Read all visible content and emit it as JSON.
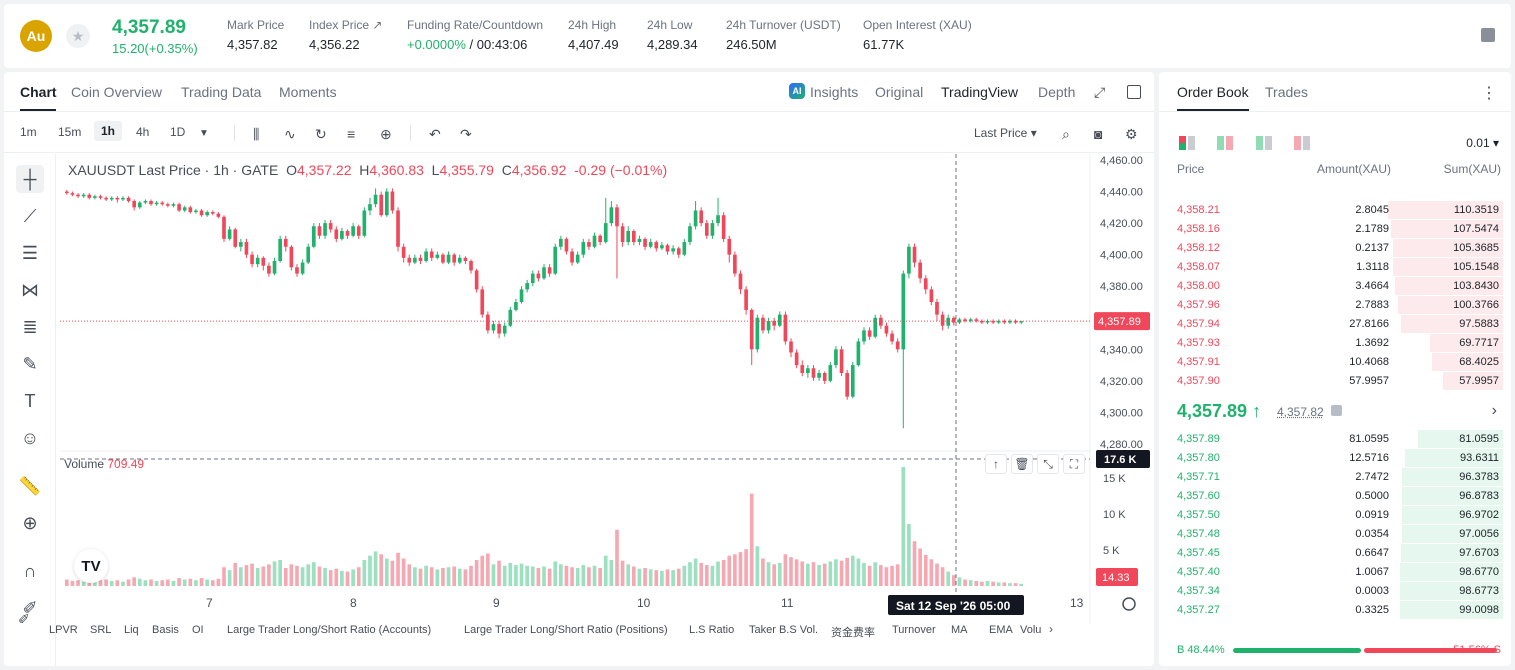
{
  "header": {
    "coin_symbol": "Au",
    "last_price": "4,357.89",
    "change": "15.20(+0.35%)",
    "stats": [
      {
        "label": "Mark Price",
        "value": "4,357.82"
      },
      {
        "label": "Index Price ↗",
        "value": "4,356.22"
      },
      {
        "label": "Funding Rate/Countdown",
        "value_green": "+0.0000%",
        "value": " / 00:43:06"
      },
      {
        "label": "24h High",
        "value": "4,407.49"
      },
      {
        "label": "24h Low",
        "value": "4,289.34"
      },
      {
        "label": "24h Turnover (USDT)",
        "value": "246.50M"
      },
      {
        "label": "Open Interest (XAU)",
        "value": "61.77K"
      }
    ]
  },
  "chart_tabs": [
    "Chart",
    "Coin Overview",
    "Trading Data",
    "Moments"
  ],
  "view_tabs": {
    "insights": "Insights",
    "original": "Original",
    "tradingview": "TradingView",
    "depth": "Depth"
  },
  "timeframes": [
    "1m",
    "15m",
    "1h",
    "4h",
    "1D"
  ],
  "active_timeframe": "1h",
  "price_source": "Last Price",
  "legend": {
    "symbol": "XAUUSDT Last Price · 1h · GATE",
    "o": "4,357.22",
    "h": "4,360.83",
    "l": "4,355.79",
    "c": "4,356.92",
    "chg": "-0.29 (−0.01%)"
  },
  "volume_legend": {
    "label": "Volume",
    "value": "709.49"
  },
  "y_axis_labels": [
    "4,460.00",
    "4,440.00",
    "4,420.00",
    "4,400.00",
    "4,380.00",
    "4,360.00",
    "4,340.00",
    "4,320.00",
    "4,300.00",
    "4,280.00"
  ],
  "current_price_tag": "4,357.89",
  "vol_axis_labels": [
    "15 K",
    "10 K",
    "5 K"
  ],
  "vol_max_tag": "17.6 K",
  "vol_current_tag": "14.33",
  "x_axis_labels": [
    "7",
    "8",
    "9",
    "10",
    "11",
    "13"
  ],
  "crosshair_time": "Sat 12 Sep '26   05:00",
  "bottom_indicators": [
    "LPVR",
    "SRL",
    "Liq",
    "Basis",
    "OI",
    "Large Trader Long/Short Ratio (Accounts)",
    "Large Trader Long/Short Ratio (Positions)",
    "L.S Ratio",
    "Taker B.S Vol.",
    "资金费率",
    "Turnover",
    "MA",
    "EMA",
    "Volu"
  ],
  "orderbook": {
    "tabs": [
      "Order Book",
      "Trades"
    ],
    "tick": "0.01",
    "head": {
      "price": "Price",
      "amount": "Amount(XAU)",
      "sum": "Sum(XAU)"
    },
    "asks": [
      {
        "price": "4,358.21",
        "amount": "2.8045",
        "sum": "110.3519",
        "depth": 1.0
      },
      {
        "price": "4,358.16",
        "amount": "2.1789",
        "sum": "107.5474",
        "depth": 0.97
      },
      {
        "price": "4,358.12",
        "amount": "0.2137",
        "sum": "105.3685",
        "depth": 0.955
      },
      {
        "price": "4,358.07",
        "amount": "1.3118",
        "sum": "105.1548",
        "depth": 0.953
      },
      {
        "price": "4,358.00",
        "amount": "3.4664",
        "sum": "103.8430",
        "depth": 0.94
      },
      {
        "price": "4,357.96",
        "amount": "2.7883",
        "sum": "100.3766",
        "depth": 0.91
      },
      {
        "price": "4,357.94",
        "amount": "27.8166",
        "sum": "97.5883",
        "depth": 0.885
      },
      {
        "price": "4,357.93",
        "amount": "1.3692",
        "sum": "69.7717",
        "depth": 0.632
      },
      {
        "price": "4,357.91",
        "amount": "10.4068",
        "sum": "68.4025",
        "depth": 0.62
      },
      {
        "price": "4,357.90",
        "amount": "57.9957",
        "sum": "57.9957",
        "depth": 0.525
      }
    ],
    "mid_price": "4,357.89 ↑",
    "mid_mark": "4,357.82",
    "bids": [
      {
        "price": "4,357.89",
        "amount": "81.0595",
        "sum": "81.0595",
        "depth": 0.735
      },
      {
        "price": "4,357.80",
        "amount": "12.5716",
        "sum": "93.6311",
        "depth": 0.849
      },
      {
        "price": "4,357.71",
        "amount": "2.7472",
        "sum": "96.3783",
        "depth": 0.874
      },
      {
        "price": "4,357.60",
        "amount": "0.5000",
        "sum": "96.8783",
        "depth": 0.878
      },
      {
        "price": "4,357.50",
        "amount": "0.0919",
        "sum": "96.9702",
        "depth": 0.879
      },
      {
        "price": "4,357.48",
        "amount": "0.0354",
        "sum": "97.0056",
        "depth": 0.88
      },
      {
        "price": "4,357.45",
        "amount": "0.6647",
        "sum": "97.6703",
        "depth": 0.885
      },
      {
        "price": "4,357.40",
        "amount": "1.0067",
        "sum": "98.6770",
        "depth": 0.895
      },
      {
        "price": "4,357.34",
        "amount": "0.0003",
        "sum": "98.6773",
        "depth": 0.895
      },
      {
        "price": "4,357.27",
        "amount": "0.3325",
        "sum": "99.0098",
        "depth": 0.898
      }
    ],
    "buy_ratio": "B 48.44%",
    "sell_ratio": "51.56% S",
    "buy_pct": 48.44
  },
  "colors": {
    "up": "#20b26c",
    "down": "#f0485a"
  },
  "chart_data": {
    "type": "candlestick",
    "title": "XAUUSDT Last Price · 1h · GATE",
    "ylim": [
      4280,
      4460
    ],
    "vol_max": 17600,
    "candles": [
      [
        4440,
        4439,
        4441,
        4438,
        900
      ],
      [
        4439,
        4438,
        4440,
        4437,
        700
      ],
      [
        4438,
        4437,
        4439,
        4436,
        800
      ],
      [
        4437,
        4438,
        4439,
        4436,
        600
      ],
      [
        4438,
        4436,
        4439,
        4435,
        900
      ],
      [
        4436,
        4437,
        4438,
        4435,
        700
      ],
      [
        4437,
        4436,
        4438,
        4435,
        800
      ],
      [
        4436,
        4435,
        4437,
        4434,
        900
      ],
      [
        4435,
        4436,
        4437,
        4434,
        700
      ],
      [
        4436,
        4435,
        4437,
        4433,
        800
      ],
      [
        4435,
        4436,
        4437,
        4434,
        600
      ],
      [
        4436,
        4434,
        4437,
        4433,
        900
      ],
      [
        4434,
        4430,
        4435,
        4428,
        1200
      ],
      [
        4430,
        4433,
        4434,
        4429,
        1000
      ],
      [
        4433,
        4434,
        4435,
        4432,
        800
      ],
      [
        4434,
        4432,
        4435,
        4431,
        900
      ],
      [
        4432,
        4433,
        4434,
        4431,
        700
      ],
      [
        4433,
        4432,
        4434,
        4431,
        800
      ],
      [
        4432,
        4431,
        4433,
        4430,
        900
      ],
      [
        4431,
        4432,
        4433,
        4430,
        700
      ],
      [
        4432,
        4428,
        4433,
        4427,
        1100
      ],
      [
        4428,
        4430,
        4431,
        4427,
        900
      ],
      [
        4430,
        4427,
        4431,
        4426,
        1000
      ],
      [
        4427,
        4428,
        4429,
        4426,
        800
      ],
      [
        4428,
        4425,
        4429,
        4424,
        1100
      ],
      [
        4425,
        4427,
        4428,
        4424,
        900
      ],
      [
        4427,
        4426,
        4428,
        4425,
        800
      ],
      [
        4426,
        4424,
        4427,
        4423,
        1000
      ],
      [
        4424,
        4410,
        4425,
        4408,
        2600
      ],
      [
        4410,
        4416,
        4418,
        4409,
        2200
      ],
      [
        4416,
        4405,
        4417,
        4404,
        3200
      ],
      [
        4405,
        4408,
        4410,
        4402,
        2600
      ],
      [
        4408,
        4400,
        4410,
        4398,
        2900
      ],
      [
        4400,
        4394,
        4402,
        4392,
        3100
      ],
      [
        4394,
        4398,
        4400,
        4392,
        2500
      ],
      [
        4398,
        4393,
        4399,
        4390,
        2700
      ],
      [
        4393,
        4388,
        4395,
        4386,
        3000
      ],
      [
        4388,
        4396,
        4398,
        4387,
        3400
      ],
      [
        4396,
        4410,
        4412,
        4395,
        3600
      ],
      [
        4410,
        4405,
        4412,
        4402,
        2500
      ],
      [
        4405,
        4392,
        4406,
        4390,
        3000
      ],
      [
        4392,
        4388,
        4394,
        4386,
        2800
      ],
      [
        4388,
        4395,
        4397,
        4387,
        2600
      ],
      [
        4395,
        4405,
        4407,
        4394,
        3000
      ],
      [
        4405,
        4418,
        4420,
        4404,
        3300
      ],
      [
        4418,
        4412,
        4420,
        4410,
        2700
      ],
      [
        4412,
        4420,
        4422,
        4410,
        2500
      ],
      [
        4420,
        4416,
        4422,
        4414,
        2200
      ],
      [
        4416,
        4410,
        4418,
        4408,
        2400
      ],
      [
        4410,
        4415,
        4417,
        4409,
        2100
      ],
      [
        4415,
        4412,
        4416,
        4410,
        2000
      ],
      [
        4412,
        4418,
        4420,
        4411,
        2300
      ],
      [
        4418,
        4412,
        4419,
        4410,
        2600
      ],
      [
        4412,
        4428,
        4430,
        4411,
        3600
      ],
      [
        4428,
        4432,
        4436,
        4425,
        4200
      ],
      [
        4432,
        4438,
        4442,
        4430,
        4800
      ],
      [
        4438,
        4425,
        4440,
        4424,
        4400
      ],
      [
        4425,
        4440,
        4442,
        4424,
        3800
      ],
      [
        4440,
        4428,
        4442,
        4426,
        3500
      ],
      [
        4428,
        4405,
        4430,
        4402,
        4600
      ],
      [
        4405,
        4398,
        4407,
        4395,
        3800
      ],
      [
        4398,
        4395,
        4400,
        4393,
        3000
      ],
      [
        4395,
        4398,
        4400,
        4394,
        2600
      ],
      [
        4398,
        4396,
        4400,
        4394,
        2400
      ],
      [
        4396,
        4402,
        4404,
        4395,
        2800
      ],
      [
        4402,
        4398,
        4404,
        4396,
        2600
      ],
      [
        4398,
        4400,
        4402,
        4397,
        2300
      ],
      [
        4400,
        4395,
        4401,
        4394,
        2500
      ],
      [
        4395,
        4400,
        4402,
        4394,
        2600
      ],
      [
        4400,
        4395,
        4401,
        4393,
        2700
      ],
      [
        4395,
        4398,
        4400,
        4394,
        2400
      ],
      [
        4398,
        4396,
        4399,
        4394,
        2300
      ],
      [
        4396,
        4390,
        4397,
        4388,
        2800
      ],
      [
        4390,
        4378,
        4391,
        4376,
        3600
      ],
      [
        4378,
        4362,
        4380,
        4360,
        4200
      ],
      [
        4362,
        4352,
        4364,
        4350,
        4500
      ],
      [
        4352,
        4356,
        4358,
        4350,
        3000
      ],
      [
        4356,
        4350,
        4358,
        4347,
        3500
      ],
      [
        4350,
        4355,
        4357,
        4348,
        2800
      ],
      [
        4355,
        4365,
        4367,
        4354,
        3200
      ],
      [
        4365,
        4370,
        4372,
        4364,
        2900
      ],
      [
        4370,
        4378,
        4380,
        4369,
        3100
      ],
      [
        4378,
        4382,
        4384,
        4376,
        2800
      ],
      [
        4382,
        4388,
        4390,
        4380,
        2700
      ],
      [
        4388,
        4385,
        4390,
        4383,
        2500
      ],
      [
        4385,
        4392,
        4394,
        4384,
        2700
      ],
      [
        4392,
        4388,
        4394,
        4386,
        2400
      ],
      [
        4388,
        4405,
        4407,
        4387,
        3400
      ],
      [
        4405,
        4410,
        4412,
        4403,
        3000
      ],
      [
        4410,
        4402,
        4411,
        4400,
        2800
      ],
      [
        4402,
        4395,
        4404,
        4393,
        2600
      ],
      [
        4395,
        4400,
        4402,
        4394,
        2500
      ],
      [
        4400,
        4408,
        4410,
        4398,
        2900
      ],
      [
        4408,
        4405,
        4410,
        4403,
        2600
      ],
      [
        4405,
        4412,
        4414,
        4404,
        2800
      ],
      [
        4412,
        4408,
        4413,
        4406,
        2500
      ],
      [
        4408,
        4420,
        4436,
        4407,
        4200
      ],
      [
        4420,
        4430,
        4434,
        4418,
        3600
      ],
      [
        4430,
        4418,
        4432,
        4385,
        7800
      ],
      [
        4418,
        4408,
        4420,
        4405,
        3500
      ],
      [
        4408,
        4415,
        4418,
        4406,
        3000
      ],
      [
        4415,
        4408,
        4416,
        4406,
        2700
      ],
      [
        4408,
        4410,
        4412,
        4406,
        2400
      ],
      [
        4410,
        4405,
        4411,
        4403,
        2500
      ],
      [
        4405,
        4408,
        4410,
        4404,
        2300
      ],
      [
        4408,
        4404,
        4409,
        4402,
        2200
      ],
      [
        4404,
        4406,
        4408,
        4403,
        2100
      ],
      [
        4406,
        4402,
        4407,
        4400,
        2300
      ],
      [
        4402,
        4404,
        4406,
        4400,
        2200
      ],
      [
        4404,
        4400,
        4405,
        4398,
        2400
      ],
      [
        4400,
        4408,
        4410,
        4399,
        2800
      ],
      [
        4408,
        4418,
        4420,
        4406,
        3300
      ],
      [
        4418,
        4428,
        4434,
        4416,
        3800
      ],
      [
        4428,
        4420,
        4430,
        4418,
        3200
      ],
      [
        4420,
        4412,
        4422,
        4410,
        2900
      ],
      [
        4412,
        4420,
        4422,
        4410,
        2800
      ],
      [
        4420,
        4425,
        4436,
        4418,
        3400
      ],
      [
        4425,
        4410,
        4427,
        4408,
        3600
      ],
      [
        4410,
        4400,
        4412,
        4395,
        4200
      ],
      [
        4400,
        4388,
        4402,
        4386,
        4400
      ],
      [
        4388,
        4378,
        4390,
        4375,
        4700
      ],
      [
        4378,
        4365,
        4380,
        4362,
        5100
      ],
      [
        4365,
        4340,
        4366,
        4330,
        12800
      ],
      [
        4340,
        4360,
        4362,
        4338,
        5500
      ],
      [
        4360,
        4352,
        4362,
        4350,
        3800
      ],
      [
        4352,
        4358,
        4360,
        4350,
        3300
      ],
      [
        4358,
        4355,
        4360,
        4352,
        3000
      ],
      [
        4355,
        4362,
        4364,
        4354,
        3200
      ],
      [
        4362,
        4345,
        4364,
        4343,
        4400
      ],
      [
        4345,
        4338,
        4347,
        4335,
        4000
      ],
      [
        4338,
        4330,
        4340,
        4328,
        3700
      ],
      [
        4330,
        4325,
        4333,
        4323,
        3400
      ],
      [
        4325,
        4328,
        4330,
        4322,
        3100
      ],
      [
        4328,
        4322,
        4330,
        4320,
        3300
      ],
      [
        4322,
        4325,
        4327,
        4320,
        2900
      ],
      [
        4325,
        4320,
        4326,
        4318,
        3100
      ],
      [
        4320,
        4330,
        4332,
        4319,
        3400
      ],
      [
        4330,
        4340,
        4342,
        4328,
        3700
      ],
      [
        4340,
        4325,
        4342,
        4323,
        3500
      ],
      [
        4325,
        4310,
        4327,
        4308,
        3900
      ],
      [
        4310,
        4330,
        4332,
        4309,
        4200
      ],
      [
        4330,
        4345,
        4347,
        4329,
        3800
      ],
      [
        4345,
        4352,
        4354,
        4343,
        3200
      ],
      [
        4352,
        4348,
        4354,
        4346,
        2800
      ],
      [
        4348,
        4360,
        4362,
        4347,
        3300
      ],
      [
        4360,
        4355,
        4362,
        4353,
        2900
      ],
      [
        4355,
        4350,
        4357,
        4348,
        2600
      ],
      [
        4350,
        4345,
        4352,
        4343,
        2800
      ],
      [
        4345,
        4340,
        4347,
        4338,
        3000
      ],
      [
        4340,
        4388,
        4390,
        4290,
        16500
      ],
      [
        4388,
        4405,
        4407,
        4385,
        8600
      ],
      [
        4405,
        4395,
        4407,
        4392,
        6200
      ],
      [
        4395,
        4385,
        4397,
        4382,
        5200
      ],
      [
        4385,
        4378,
        4387,
        4375,
        4300
      ],
      [
        4378,
        4370,
        4380,
        4368,
        3700
      ],
      [
        4370,
        4362,
        4372,
        4358,
        3100
      ],
      [
        4362,
        4355,
        4364,
        4352,
        2600
      ],
      [
        4355,
        4360,
        4362,
        4353,
        2000
      ],
      [
        4360,
        4357,
        4361,
        4355,
        1500
      ],
      [
        4357,
        4359,
        4360,
        4356,
        1200
      ],
      [
        4359,
        4358,
        4360,
        4357,
        900
      ],
      [
        4358,
        4359,
        4360,
        4357,
        800
      ],
      [
        4359,
        4358,
        4360,
        4357,
        700
      ],
      [
        4358,
        4357,
        4359,
        4356,
        600
      ],
      [
        4357,
        4358,
        4359,
        4356,
        700
      ],
      [
        4358,
        4357,
        4359,
        4356,
        600
      ],
      [
        4357,
        4358,
        4359,
        4356,
        500
      ],
      [
        4358,
        4357,
        4359,
        4356,
        500
      ],
      [
        4357,
        4358,
        4359,
        4356,
        400
      ],
      [
        4358,
        4357,
        4359,
        4356,
        400
      ],
      [
        4357,
        4357.89,
        4358,
        4356,
        300
      ]
    ]
  }
}
